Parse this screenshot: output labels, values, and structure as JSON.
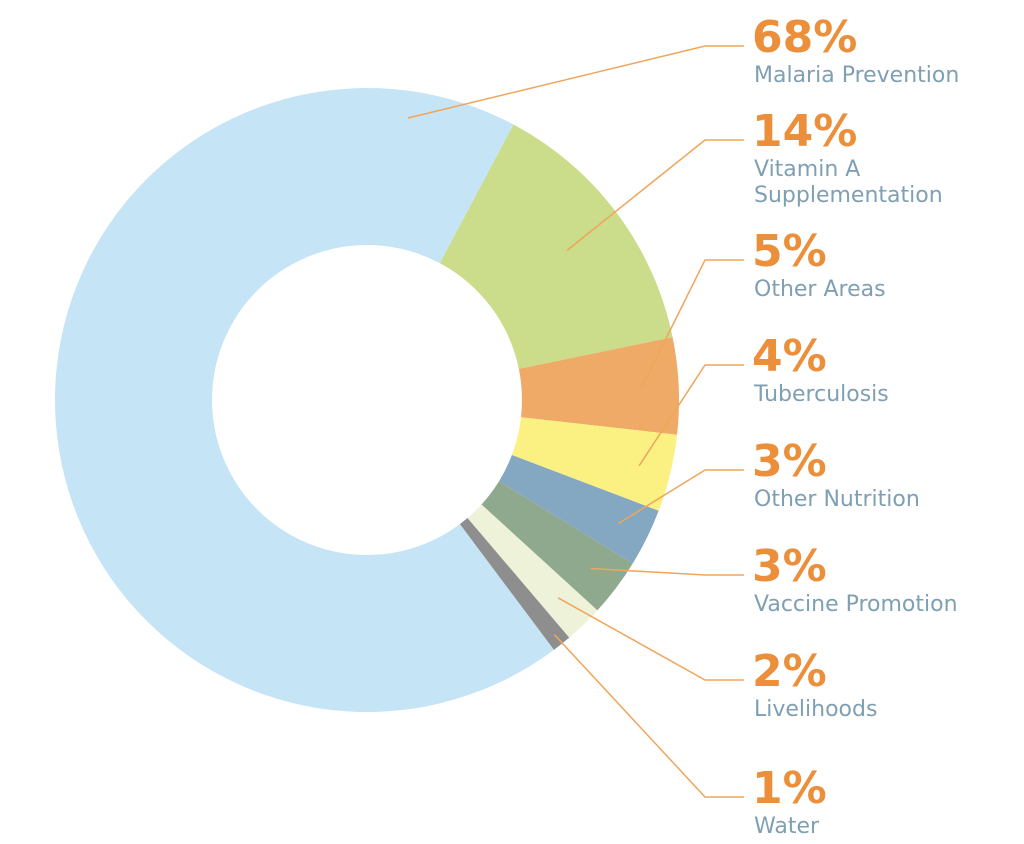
{
  "chart_data": {
    "type": "pie",
    "variant": "donut",
    "categories": [
      "Malaria Prevention",
      "Vitamin A Supplementation",
      "Other Areas",
      "Tuberculosis",
      "Other Nutrition",
      "Vaccine Promotion",
      "Livelihoods",
      "Water"
    ],
    "values": [
      68,
      14,
      5,
      4,
      3,
      3,
      2,
      1
    ],
    "percent_labels": [
      "68%",
      "14%",
      "5%",
      "4%",
      "3%",
      "3%",
      "2%",
      "1%"
    ],
    "label_lines": [
      [
        "Malaria Prevention"
      ],
      [
        "Vitamin A",
        "Supplementation"
      ],
      [
        "Other Areas"
      ],
      [
        "Tuberculosis"
      ],
      [
        "Other Nutrition"
      ],
      [
        "Vaccine Promotion"
      ],
      [
        "Livelihoods"
      ],
      [
        "Water"
      ]
    ],
    "colors": [
      "#c5e4f6",
      "#cbdc8a",
      "#eeaa66",
      "#fbf082",
      "#84a7c2",
      "#8fa98e",
      "#eef2d9",
      "#8e8e8e"
    ],
    "label_color": "#7f9fb3",
    "percent_color": "#ec8f3a",
    "leader_line_color": "#f0a55a",
    "legend": "right",
    "title": ""
  }
}
